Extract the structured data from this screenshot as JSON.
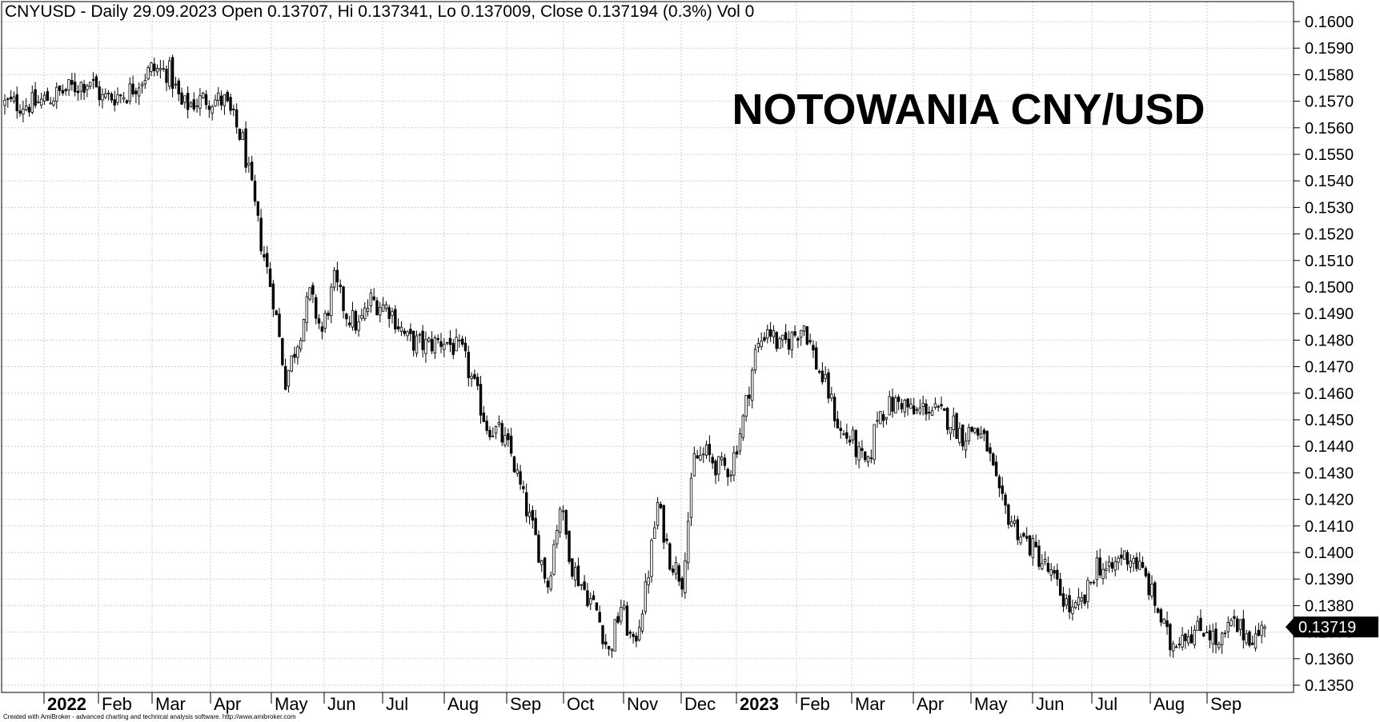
{
  "header": {
    "text": "CNYUSD - Daily 29.09.2023 Open 0.13707, Hi 0.137341, Lo 0.137009, Close 0.137194 (0.3%) Vol 0"
  },
  "footer": {
    "credit": "Created with AmiBroker - advanced charting and technical analysis software. http://www.amibroker.com"
  },
  "chart_data": {
    "type": "ohlc",
    "title": "NOTOWANIA CNY/USD",
    "symbol": "CNYUSD",
    "interval": "Daily",
    "grid": true,
    "ylim": [
      0.1345,
      0.1605
    ],
    "y_ticks": [
      "0.1350",
      "0.1360",
      "0.1370",
      "0.1380",
      "0.1390",
      "0.1400",
      "0.1410",
      "0.1420",
      "0.1430",
      "0.1440",
      "0.1450",
      "0.1460",
      "0.1470",
      "0.1480",
      "0.1490",
      "0.1500",
      "0.1510",
      "0.1520",
      "0.1530",
      "0.1540",
      "0.1550",
      "0.1560",
      "0.1570",
      "0.1580",
      "0.1590",
      "0.1600"
    ],
    "x_ticks": [
      {
        "label": "2022",
        "year": true
      },
      {
        "label": "Feb"
      },
      {
        "label": "Mar"
      },
      {
        "label": "Apr"
      },
      {
        "label": "May"
      },
      {
        "label": "Jun"
      },
      {
        "label": "Jul"
      },
      {
        "label": "Aug"
      },
      {
        "label": "Sep"
      },
      {
        "label": "Oct"
      },
      {
        "label": "Nov"
      },
      {
        "label": "Dec"
      },
      {
        "label": "2023",
        "year": true
      },
      {
        "label": "Feb"
      },
      {
        "label": "Mar"
      },
      {
        "label": "Apr"
      },
      {
        "label": "May"
      },
      {
        "label": "Jun"
      },
      {
        "label": "Jul"
      },
      {
        "label": "Aug"
      },
      {
        "label": "Sep"
      }
    ],
    "last_value_label": "0.13719",
    "last_close": 0.137194,
    "price_path": [
      {
        "i": 0,
        "close": 0.1569
      },
      {
        "i": 10,
        "close": 0.1569
      },
      {
        "i": 20,
        "close": 0.1574
      },
      {
        "i": 28,
        "close": 0.1578
      },
      {
        "i": 32,
        "close": 0.1571
      },
      {
        "i": 40,
        "close": 0.1573
      },
      {
        "i": 48,
        "close": 0.1582
      },
      {
        "i": 54,
        "close": 0.1581
      },
      {
        "i": 58,
        "close": 0.1568
      },
      {
        "i": 66,
        "close": 0.1571
      },
      {
        "i": 72,
        "close": 0.157
      },
      {
        "i": 78,
        "close": 0.1555
      },
      {
        "i": 84,
        "close": 0.1517
      },
      {
        "i": 88,
        "close": 0.1496
      },
      {
        "i": 92,
        "close": 0.1465
      },
      {
        "i": 96,
        "close": 0.148
      },
      {
        "i": 100,
        "close": 0.1497
      },
      {
        "i": 104,
        "close": 0.1483
      },
      {
        "i": 108,
        "close": 0.1502
      },
      {
        "i": 112,
        "close": 0.149
      },
      {
        "i": 116,
        "close": 0.1485
      },
      {
        "i": 120,
        "close": 0.1495
      },
      {
        "i": 126,
        "close": 0.1492
      },
      {
        "i": 132,
        "close": 0.148
      },
      {
        "i": 138,
        "close": 0.1478
      },
      {
        "i": 144,
        "close": 0.148
      },
      {
        "i": 150,
        "close": 0.1475
      },
      {
        "i": 154,
        "close": 0.1462
      },
      {
        "i": 158,
        "close": 0.1448
      },
      {
        "i": 162,
        "close": 0.1445
      },
      {
        "i": 166,
        "close": 0.1437
      },
      {
        "i": 170,
        "close": 0.142
      },
      {
        "i": 174,
        "close": 0.1405
      },
      {
        "i": 178,
        "close": 0.1388
      },
      {
        "i": 182,
        "close": 0.1418
      },
      {
        "i": 186,
        "close": 0.1395
      },
      {
        "i": 190,
        "close": 0.1386
      },
      {
        "i": 194,
        "close": 0.1378
      },
      {
        "i": 198,
        "close": 0.1362
      },
      {
        "i": 202,
        "close": 0.138
      },
      {
        "i": 206,
        "close": 0.1364
      },
      {
        "i": 210,
        "close": 0.1385
      },
      {
        "i": 214,
        "close": 0.1418
      },
      {
        "i": 218,
        "close": 0.1398
      },
      {
        "i": 222,
        "close": 0.139
      },
      {
        "i": 226,
        "close": 0.1435
      },
      {
        "i": 230,
        "close": 0.1437
      },
      {
        "i": 234,
        "close": 0.1432
      },
      {
        "i": 238,
        "close": 0.1432
      },
      {
        "i": 242,
        "close": 0.145
      },
      {
        "i": 246,
        "close": 0.1475
      },
      {
        "i": 250,
        "close": 0.1485
      },
      {
        "i": 254,
        "close": 0.1477
      },
      {
        "i": 258,
        "close": 0.1481
      },
      {
        "i": 262,
        "close": 0.1486
      },
      {
        "i": 266,
        "close": 0.1471
      },
      {
        "i": 270,
        "close": 0.146
      },
      {
        "i": 274,
        "close": 0.1445
      },
      {
        "i": 278,
        "close": 0.1442
      },
      {
        "i": 280,
        "close": 0.1436
      },
      {
        "i": 283,
        "close": 0.1432
      },
      {
        "i": 286,
        "close": 0.1452
      },
      {
        "i": 290,
        "close": 0.1455
      },
      {
        "i": 294,
        "close": 0.1457
      },
      {
        "i": 298,
        "close": 0.1452
      },
      {
        "i": 302,
        "close": 0.1455
      },
      {
        "i": 306,
        "close": 0.1452
      },
      {
        "i": 310,
        "close": 0.145
      },
      {
        "i": 314,
        "close": 0.1444
      },
      {
        "i": 318,
        "close": 0.1447
      },
      {
        "i": 322,
        "close": 0.144
      },
      {
        "i": 326,
        "close": 0.142
      },
      {
        "i": 330,
        "close": 0.1412
      },
      {
        "i": 334,
        "close": 0.1405
      },
      {
        "i": 338,
        "close": 0.14
      },
      {
        "i": 342,
        "close": 0.1393
      },
      {
        "i": 346,
        "close": 0.1385
      },
      {
        "i": 350,
        "close": 0.1377
      },
      {
        "i": 354,
        "close": 0.1382
      },
      {
        "i": 358,
        "close": 0.1396
      },
      {
        "i": 362,
        "close": 0.1392
      },
      {
        "i": 366,
        "close": 0.1399
      },
      {
        "i": 370,
        "close": 0.1398
      },
      {
        "i": 374,
        "close": 0.139
      },
      {
        "i": 378,
        "close": 0.1378
      },
      {
        "i": 382,
        "close": 0.1365
      },
      {
        "i": 386,
        "close": 0.137
      },
      {
        "i": 390,
        "close": 0.137
      },
      {
        "i": 394,
        "close": 0.1372
      },
      {
        "i": 398,
        "close": 0.1364
      },
      {
        "i": 402,
        "close": 0.1373
      },
      {
        "i": 406,
        "close": 0.137
      },
      {
        "i": 410,
        "close": 0.1368
      },
      {
        "i": 413,
        "close": 0.13719
      }
    ]
  }
}
